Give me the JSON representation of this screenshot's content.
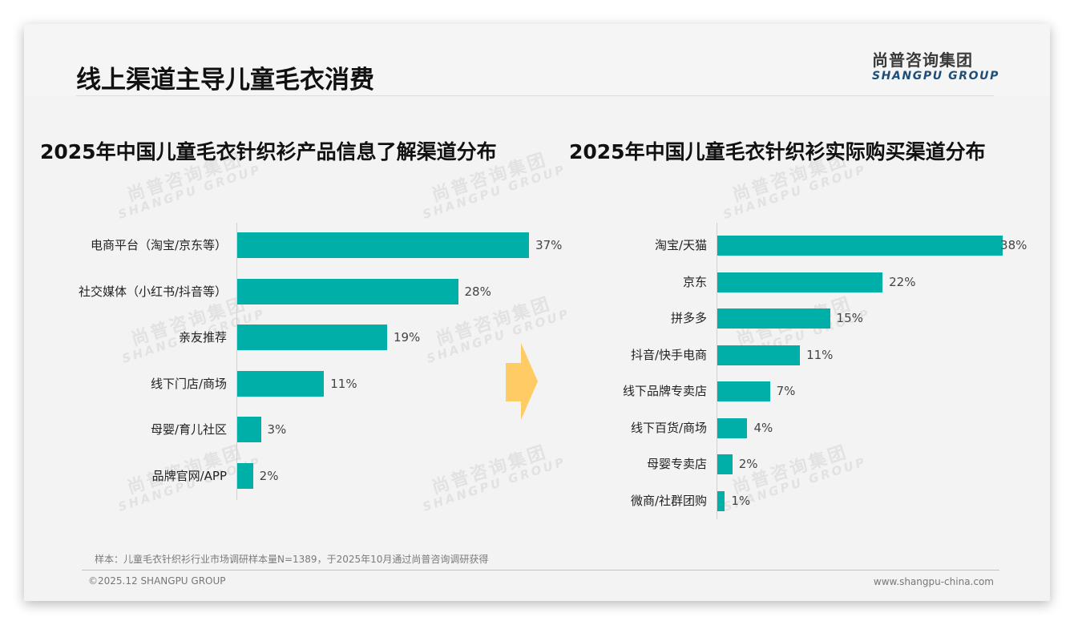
{
  "slide": {
    "title": "线上渠道主导儿童毛衣消费",
    "logo": {
      "cn": "尚普咨询集团",
      "en": "SHANGPU GROUP"
    },
    "watermark": {
      "cn": "尚普咨询集团",
      "en": "SHANGPU GROUP"
    },
    "footnote": "样本：儿童毛衣针织衫行业市场调研样本量N=1389，于2025年10月通过尚普咨询调研获得",
    "copyright": "©2025.12 SHANGPU GROUP",
    "website": "www.shangpu-china.com",
    "arrow_icon": "right-arrow-icon",
    "colors": {
      "bar": "#00b0a8",
      "arrow": "#ffcb65",
      "logo_en": "#1f4e79"
    }
  },
  "chart_data": [
    {
      "type": "bar",
      "orientation": "horizontal",
      "title": "2025年中国儿童毛衣针织衫产品信息了解渠道分布",
      "xlabel": "",
      "ylabel": "",
      "unit": "%",
      "grid": false,
      "legend": null,
      "categories": [
        "电商平台（淘宝/京东等）",
        "社交媒体（小红书/抖音等）",
        "亲友推荐",
        "线下门店/商场",
        "母婴/育儿社区",
        "品牌官网/APP"
      ],
      "values": [
        37,
        28,
        19,
        11,
        3,
        2
      ],
      "labels": [
        "37%",
        "28%",
        "19%",
        "11%",
        "3%",
        "2%"
      ],
      "xlim": [
        0,
        40
      ]
    },
    {
      "type": "bar",
      "orientation": "horizontal",
      "title": "2025年中国儿童毛衣针织衫实际购买渠道分布",
      "xlabel": "",
      "ylabel": "",
      "unit": "%",
      "grid": false,
      "legend": null,
      "categories": [
        "淘宝/天猫",
        "京东",
        "拼多多",
        "抖音/快手电商",
        "线下品牌专卖店",
        "线下百货/商场",
        "母婴专卖店",
        "微商/社群团购"
      ],
      "values": [
        38,
        22,
        15,
        11,
        7,
        4,
        2,
        1
      ],
      "labels": [
        "38%",
        "22%",
        "15%",
        "11%",
        "7%",
        "4%",
        "2%",
        "1%"
      ],
      "xlim": [
        0,
        40
      ]
    }
  ]
}
